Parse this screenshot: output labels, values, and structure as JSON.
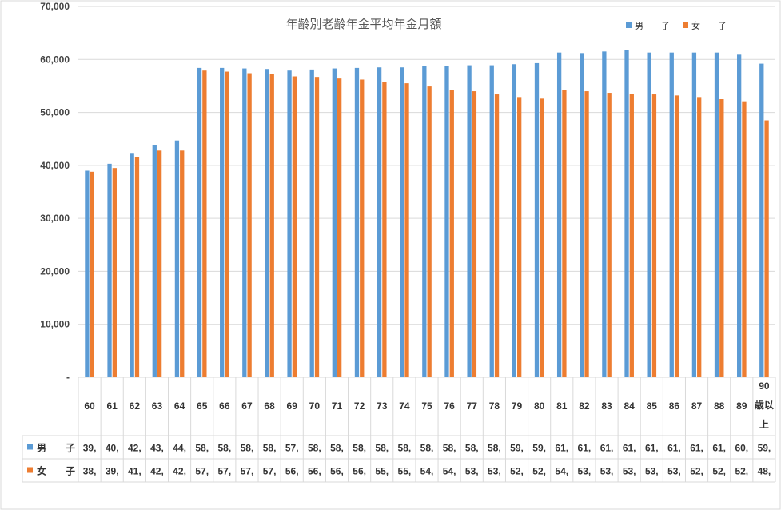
{
  "chart_data": {
    "type": "bar",
    "title": "年齢別老齢年金平均年金月額",
    "xlabel": "",
    "ylabel": "",
    "ylim": [
      0,
      70000
    ],
    "yticks": [
      "-",
      "10,000",
      "20,000",
      "30,000",
      "40,000",
      "50,000",
      "60,000",
      "70,000"
    ],
    "grid": true,
    "legend_position": "top-right",
    "categories": [
      "60",
      "61",
      "62",
      "63",
      "64",
      "65",
      "66",
      "67",
      "68",
      "69",
      "70",
      "71",
      "72",
      "73",
      "74",
      "75",
      "76",
      "77",
      "78",
      "79",
      "80",
      "81",
      "82",
      "83",
      "84",
      "85",
      "86",
      "87",
      "88",
      "89",
      "90歳以上"
    ],
    "series": [
      {
        "name": "男　　子",
        "color": "#5B9BD5",
        "values": [
          39000,
          40300,
          42200,
          43800,
          44700,
          58400,
          58400,
          58300,
          58200,
          57900,
          58100,
          58300,
          58400,
          58500,
          58500,
          58700,
          58700,
          58900,
          58900,
          59100,
          59300,
          61300,
          61200,
          61500,
          61800,
          61300,
          61300,
          61300,
          61300,
          60900,
          59200
        ],
        "table_values": [
          "39,",
          "40,",
          "42,",
          "43,",
          "44,",
          "58,",
          "58,",
          "58,",
          "58,",
          "57,",
          "58,",
          "58,",
          "58,",
          "58,",
          "58,",
          "58,",
          "58,",
          "58,",
          "58,",
          "59,",
          "59,",
          "61,",
          "61,",
          "61,",
          "61,",
          "61,",
          "61,",
          "61,",
          "61,",
          "60,",
          "59,"
        ]
      },
      {
        "name": "女　　子",
        "color": "#ED7D31",
        "values": [
          38800,
          39500,
          41600,
          42800,
          42800,
          57900,
          57700,
          57400,
          57300,
          56800,
          56700,
          56400,
          56200,
          55800,
          55500,
          54900,
          54300,
          54000,
          53400,
          52900,
          52600,
          54300,
          54000,
          53700,
          53500,
          53400,
          53200,
          52900,
          52500,
          52100,
          48500
        ],
        "table_values": [
          "38,",
          "39,",
          "41,",
          "42,",
          "42,",
          "57,",
          "57,",
          "57,",
          "57,",
          "56,",
          "56,",
          "56,",
          "56,",
          "55,",
          "55,",
          "54,",
          "54,",
          "53,",
          "53,",
          "52,",
          "52,",
          "54,",
          "53,",
          "53,",
          "53,",
          "53,",
          "53,",
          "52,",
          "52,",
          "52,",
          "48,"
        ]
      }
    ]
  }
}
